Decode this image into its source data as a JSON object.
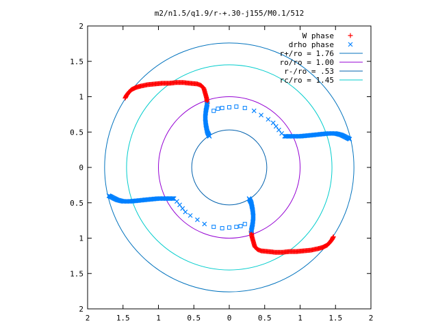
{
  "chart_data": {
    "type": "scatter",
    "title": "m2/n1.5/q1.9/r-+.30-j155/M0.1/512",
    "xlabel": "",
    "ylabel": "",
    "xlim": [
      -2,
      2
    ],
    "ylim": [
      -2,
      2
    ],
    "x_ticks": [
      "2",
      "1.5",
      "1",
      "0.5",
      "0",
      "0.5",
      "1",
      "1.5",
      "2"
    ],
    "y_ticks": [
      "2",
      "1.5",
      "1",
      "0.5",
      "0",
      "0.5",
      "1",
      "1.5",
      "2"
    ],
    "legend_position": "top-right",
    "grid": false,
    "colors": {
      "w_phase": "#ff0000",
      "drho_phase": "#0080ff",
      "r_plus": "#0072bd",
      "r_o": "#9400d3",
      "r_minus": "#0060ad",
      "r_c": "#00cccc"
    },
    "series": [
      {
        "name": "W phase",
        "marker": "plus",
        "color": "#ff0000",
        "arms": [
          {
            "points": [
              [
                -1.47,
                0.98
              ],
              [
                -1.45,
                1.02
              ],
              [
                -1.42,
                1.06
              ],
              [
                -1.38,
                1.1
              ],
              [
                -1.32,
                1.13
              ],
              [
                -1.25,
                1.15
              ],
              [
                -1.15,
                1.17
              ],
              [
                -1.05,
                1.18
              ],
              [
                -0.95,
                1.19
              ],
              [
                -0.85,
                1.19
              ],
              [
                -0.75,
                1.2
              ],
              [
                -0.65,
                1.2
              ],
              [
                -0.55,
                1.19
              ],
              [
                -0.45,
                1.18
              ],
              [
                -0.4,
                1.16
              ],
              [
                -0.36,
                1.12
              ],
              [
                -0.34,
                1.05
              ],
              [
                -0.32,
                0.98
              ],
              [
                -0.31,
                0.9
              ]
            ]
          },
          {
            "points": [
              [
                1.47,
                -0.98
              ],
              [
                1.45,
                -1.02
              ],
              [
                1.42,
                -1.06
              ],
              [
                1.38,
                -1.1
              ],
              [
                1.32,
                -1.13
              ],
              [
                1.25,
                -1.15
              ],
              [
                1.15,
                -1.17
              ],
              [
                1.05,
                -1.18
              ],
              [
                0.95,
                -1.19
              ],
              [
                0.85,
                -1.19
              ],
              [
                0.75,
                -1.2
              ],
              [
                0.65,
                -1.2
              ],
              [
                0.55,
                -1.19
              ],
              [
                0.45,
                -1.18
              ],
              [
                0.4,
                -1.16
              ],
              [
                0.36,
                -1.12
              ],
              [
                0.34,
                -1.05
              ],
              [
                0.32,
                -0.98
              ],
              [
                0.31,
                -0.9
              ]
            ]
          }
        ]
      },
      {
        "name": "drho phase",
        "marker": "cross",
        "color": "#0080ff",
        "arms": [
          {
            "points": [
              [
                -0.31,
                0.9
              ],
              [
                -0.33,
                0.8
              ],
              [
                -0.34,
                0.7
              ],
              [
                -0.33,
                0.6
              ],
              [
                -0.31,
                0.5
              ],
              [
                -0.28,
                0.44
              ]
            ]
          },
          {
            "points": [
              [
                0.31,
                -0.9
              ],
              [
                0.33,
                -0.8
              ],
              [
                0.34,
                -0.7
              ],
              [
                0.33,
                -0.6
              ],
              [
                0.31,
                -0.5
              ],
              [
                0.28,
                -0.44
              ]
            ]
          },
          {
            "points": [
              [
                0.78,
                0.44
              ],
              [
                0.9,
                0.44
              ],
              [
                1.0,
                0.44
              ],
              [
                1.1,
                0.45
              ],
              [
                1.2,
                0.46
              ],
              [
                1.3,
                0.47
              ],
              [
                1.4,
                0.48
              ],
              [
                1.5,
                0.48
              ],
              [
                1.58,
                0.46
              ],
              [
                1.64,
                0.43
              ],
              [
                1.7,
                0.4
              ]
            ]
          },
          {
            "points": [
              [
                -0.78,
                -0.44
              ],
              [
                -0.9,
                -0.44
              ],
              [
                -1.0,
                -0.44
              ],
              [
                -1.1,
                -0.45
              ],
              [
                -1.2,
                -0.46
              ],
              [
                -1.3,
                -0.47
              ],
              [
                -1.4,
                -0.48
              ],
              [
                -1.5,
                -0.48
              ],
              [
                -1.58,
                -0.46
              ],
              [
                -1.64,
                -0.43
              ],
              [
                -1.7,
                -0.4
              ]
            ]
          }
        ],
        "sparse": [
          [
            -0.22,
            0.8
          ],
          [
            -0.16,
            0.83
          ],
          [
            -0.1,
            0.84
          ],
          [
            0.0,
            0.85
          ],
          [
            0.1,
            0.86
          ],
          [
            0.22,
            0.84
          ],
          [
            0.35,
            0.8
          ],
          [
            0.45,
            0.74
          ],
          [
            0.55,
            0.68
          ],
          [
            0.62,
            0.63
          ],
          [
            0.66,
            0.58
          ],
          [
            0.7,
            0.53
          ],
          [
            0.74,
            0.48
          ],
          [
            0.22,
            -0.8
          ],
          [
            0.16,
            -0.83
          ],
          [
            0.1,
            -0.84
          ],
          [
            0.0,
            -0.85
          ],
          [
            -0.1,
            -0.86
          ],
          [
            -0.22,
            -0.84
          ],
          [
            -0.35,
            -0.8
          ],
          [
            -0.45,
            -0.74
          ],
          [
            -0.55,
            -0.68
          ],
          [
            -0.62,
            -0.63
          ],
          [
            -0.66,
            -0.58
          ],
          [
            -0.7,
            -0.53
          ],
          [
            -0.74,
            -0.48
          ]
        ]
      }
    ],
    "circles": [
      {
        "name": "r+/ro = 1.76",
        "radius": 1.76,
        "color": "#0072bd"
      },
      {
        "name": "ro/ro = 1.00",
        "radius": 1.0,
        "color": "#9400d3"
      },
      {
        "name": "r-/ro = .53",
        "radius": 0.53,
        "color": "#0060ad"
      },
      {
        "name": "rc/ro = 1.45",
        "radius": 1.45,
        "color": "#00cccc"
      }
    ]
  }
}
